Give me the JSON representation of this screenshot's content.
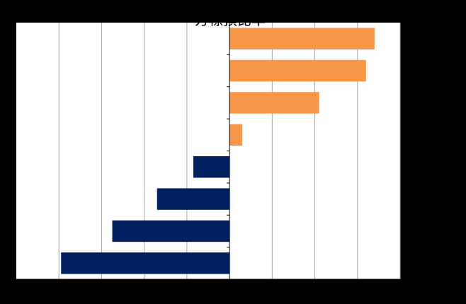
{
  "chart_data": {
    "type": "bar",
    "orientation": "horizontal",
    "title": "方標預比率",
    "xlabel": "",
    "ylabel": "",
    "xlim": [
      -5,
      4
    ],
    "grid": true,
    "legend": "none",
    "categories": [
      "",
      "",
      "",
      "",
      "",
      "",
      "",
      ""
    ],
    "values": [
      3.4,
      3.2,
      2.1,
      0.3,
      -0.85,
      -1.7,
      -2.75,
      -3.95
    ],
    "colors": {
      "positive": "#F79646",
      "negative": "#002060",
      "plot_background": "#FFFFFF",
      "gridline": "#A6A6A6",
      "axis": "#000000"
    }
  }
}
